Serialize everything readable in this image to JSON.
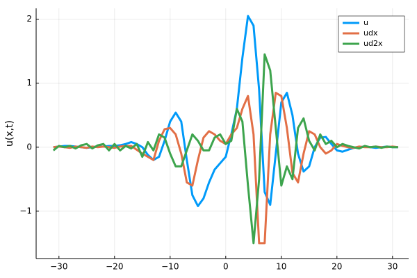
{
  "chart_data": {
    "type": "line",
    "ylabel": "u(x,t)",
    "x": [
      -31,
      -30,
      -29,
      -28,
      -27,
      -26,
      -25,
      -24,
      -23,
      -22,
      -21,
      -20,
      -19,
      -18,
      -17,
      -16,
      -15,
      -14,
      -13,
      -12,
      -11,
      -10,
      -9,
      -8,
      -7,
      -6,
      -5,
      -4,
      -3,
      -2,
      -1,
      0,
      1,
      2,
      3,
      4,
      5,
      6,
      7,
      8,
      9,
      10,
      11,
      12,
      13,
      14,
      15,
      16,
      17,
      18,
      19,
      20,
      21,
      22,
      23,
      24,
      25,
      26,
      27,
      28,
      29,
      30,
      31
    ],
    "series": [
      {
        "name": "u",
        "color": "#009af9",
        "values": [
          0,
          0.01,
          0.02,
          0.02,
          0.01,
          0,
          -0.01,
          0,
          0.01,
          0.01,
          0.02,
          0.02,
          0.03,
          0.05,
          0.08,
          0.05,
          0,
          -0.12,
          -0.2,
          -0.15,
          0.1,
          0.4,
          0.54,
          0.4,
          -0.2,
          -0.75,
          -0.92,
          -0.8,
          -0.55,
          -0.35,
          -0.25,
          -0.15,
          0.2,
          0.6,
          1.4,
          2.05,
          1.9,
          0.9,
          -0.7,
          -0.9,
          -0.1,
          0.7,
          0.85,
          0.5,
          -0.1,
          -0.38,
          -0.3,
          0,
          0.15,
          0.16,
          0.05,
          -0.05,
          -0.07,
          -0.04,
          -0.01,
          0,
          0.01,
          0,
          -0.01,
          0,
          0.01,
          0,
          0
        ]
      },
      {
        "name": "udx",
        "color": "#e26f46",
        "values": [
          0,
          0.01,
          0,
          -0.01,
          0.01,
          0,
          -0.01,
          0.01,
          0,
          0.01,
          0,
          -0.01,
          0.01,
          0.02,
          0.02,
          -0.04,
          -0.1,
          -0.15,
          -0.2,
          0.1,
          0.28,
          0.3,
          0.2,
          -0.1,
          -0.55,
          -0.6,
          -0.2,
          0.15,
          0.25,
          0.2,
          0.1,
          0.05,
          0.2,
          0.3,
          0.6,
          0.8,
          0.2,
          -1.5,
          -1.5,
          0.2,
          0.85,
          0.8,
          0.3,
          -0.4,
          -0.55,
          -0.1,
          0.25,
          0.2,
          0,
          -0.1,
          -0.05,
          0.05,
          0.02,
          0,
          -0.01,
          0.01,
          0,
          0,
          0.01,
          0,
          0,
          0.01,
          0
        ]
      },
      {
        "name": "ud2x",
        "color": "#3da44d",
        "values": [
          -0.05,
          0.02,
          0,
          0.02,
          -0.02,
          0.03,
          0.05,
          -0.02,
          0.03,
          0.05,
          -0.05,
          0.05,
          -0.05,
          0.02,
          -0.02,
          0.05,
          -0.15,
          0.08,
          -0.05,
          0.2,
          0.15,
          -0.1,
          -0.3,
          -0.3,
          -0.05,
          0.2,
          0.1,
          -0.05,
          -0.05,
          0.15,
          0.2,
          0.05,
          0.1,
          0.6,
          0.4,
          -0.6,
          -1.5,
          -0.5,
          1.45,
          1.2,
          0.3,
          -0.6,
          -0.3,
          -0.5,
          0.3,
          0.45,
          0.1,
          -0.05,
          0.2,
          0.05,
          0.1,
          0,
          0.05,
          0.02,
          0,
          -0.02,
          0.02,
          0,
          0.01,
          -0.01,
          0.01,
          0,
          0
        ]
      }
    ],
    "xlim": [
      -34.1,
      32.9
    ],
    "ylim": [
      -1.74,
      2.17
    ],
    "xticks": [
      {
        "value": -30,
        "label": "−30"
      },
      {
        "value": -20,
        "label": "−20"
      },
      {
        "value": -10,
        "label": "−10"
      },
      0,
      10,
      20,
      30
    ],
    "yticks": [
      {
        "value": -1,
        "label": "−1"
      },
      0,
      1,
      2
    ],
    "grid": true,
    "legend": "top-right"
  }
}
